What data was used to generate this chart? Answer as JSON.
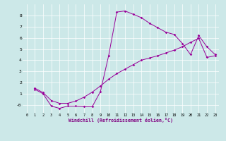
{
  "xlabel": "Windchill (Refroidissement éolien,°C)",
  "bg_color": "#cce8e8",
  "line_color": "#990099",
  "xlim": [
    -0.5,
    23.5
  ],
  "ylim": [
    -0.7,
    9.0
  ],
  "yticks": [
    0,
    1,
    2,
    3,
    4,
    5,
    6,
    7,
    8
  ],
  "ytick_labels": [
    "-0",
    "1",
    "2",
    "3",
    "4",
    "5",
    "6",
    "7",
    "8"
  ],
  "xticks": [
    0,
    1,
    2,
    3,
    4,
    5,
    6,
    7,
    8,
    9,
    10,
    11,
    12,
    13,
    14,
    15,
    16,
    17,
    18,
    19,
    20,
    21,
    22,
    23
  ],
  "series1_x": [
    1,
    2,
    3,
    4,
    5,
    6,
    7,
    8,
    9,
    10,
    11,
    12,
    13,
    14,
    15,
    16,
    17,
    18,
    19,
    20,
    21,
    22,
    23
  ],
  "series1_y": [
    1.4,
    1.0,
    -0.1,
    -0.3,
    -0.1,
    -0.1,
    -0.15,
    -0.15,
    1.2,
    4.4,
    8.3,
    8.4,
    8.1,
    7.8,
    7.3,
    6.9,
    6.5,
    6.3,
    5.5,
    4.5,
    6.2,
    5.2,
    4.5
  ],
  "series2_x": [
    1,
    2,
    3,
    4,
    5,
    6,
    7,
    8,
    9,
    10,
    11,
    12,
    13,
    14,
    15,
    16,
    17,
    18,
    19,
    20,
    21,
    22,
    23
  ],
  "series2_y": [
    1.5,
    1.1,
    0.4,
    0.15,
    0.15,
    0.35,
    0.7,
    1.15,
    1.7,
    2.3,
    2.8,
    3.2,
    3.6,
    4.0,
    4.2,
    4.4,
    4.65,
    4.9,
    5.2,
    5.6,
    5.95,
    4.25,
    4.4
  ]
}
